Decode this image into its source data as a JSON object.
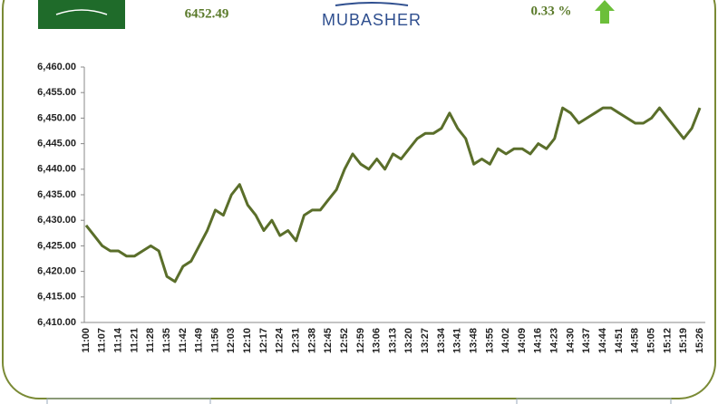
{
  "header": {
    "price": "6452.49",
    "logo": "MUBASHER",
    "change": "0.33 %"
  },
  "chart_data": {
    "type": "line",
    "categories": [
      "11:00",
      null,
      "11:07",
      null,
      "11:14",
      null,
      "11:21",
      null,
      "11:28",
      null,
      "11:35",
      null,
      "11:42",
      null,
      "11:49",
      null,
      "11:56",
      null,
      "12:03",
      null,
      "12:10",
      null,
      "12:17",
      null,
      "12:24",
      null,
      "12:31",
      null,
      "12:38",
      null,
      "12:45",
      null,
      "12:52",
      null,
      "12:59",
      null,
      "13:06",
      null,
      "13:13",
      null,
      "13:20",
      null,
      "13:27",
      null,
      "13:34",
      null,
      "13:41",
      null,
      "13:48",
      null,
      "13:55",
      null,
      "14:02",
      null,
      "14:09",
      null,
      "14:16",
      null,
      "14:23",
      null,
      "14:30",
      null,
      "14:37",
      null,
      "14:44",
      null,
      "14:51",
      null,
      "14:58",
      null,
      "15:05",
      null,
      "15:12",
      null,
      "15:19",
      null,
      "15:26"
    ],
    "series": [
      {
        "color": "#5a6e2a",
        "values": [
          6429,
          6427,
          6425,
          6424,
          6424,
          6423,
          6423,
          6424,
          6425,
          6424,
          6419,
          6418,
          6421,
          6422,
          6425,
          6428,
          6432,
          6431,
          6435,
          6437,
          6433,
          6431,
          6428,
          6430,
          6427,
          6428,
          6426,
          6431,
          6432,
          6432,
          6434,
          6436,
          6440,
          6443,
          6441,
          6440,
          6442,
          6440,
          6443,
          6442,
          6444,
          6446,
          6447,
          6447,
          6448,
          6451,
          6448,
          6446,
          6441,
          6442,
          6441,
          6444,
          6443,
          6444,
          6444,
          6443,
          6445,
          6444,
          6446,
          6452,
          6451,
          6449,
          6450,
          6451,
          6452,
          6452,
          6451,
          6450,
          6449,
          6449,
          6450,
          6452,
          6450,
          6448,
          6446,
          6448,
          6452
        ]
      }
    ],
    "ylim": [
      6410,
      6460
    ],
    "yticks": [
      {
        "value": 6410,
        "label": "6,410.00"
      },
      {
        "value": 6415,
        "label": "6,415.00"
      },
      {
        "value": 6420,
        "label": "6,420.00"
      },
      {
        "value": 6425,
        "label": "6,425.00"
      },
      {
        "value": 6430,
        "label": "6,430.00"
      },
      {
        "value": 6435,
        "label": "6,435.00"
      },
      {
        "value": 6440,
        "label": "6,440.00"
      },
      {
        "value": 6445,
        "label": "6,445.00"
      },
      {
        "value": 6450,
        "label": "6,450.00"
      },
      {
        "value": 6455,
        "label": "6,455.00"
      },
      {
        "value": 6460,
        "label": "6,460.00"
      }
    ],
    "grid": false
  }
}
